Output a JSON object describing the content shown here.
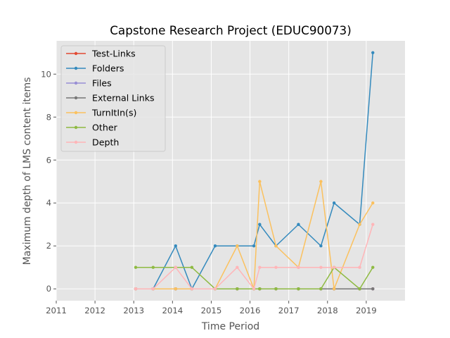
{
  "chart_data": {
    "type": "line",
    "title": "Capstone Research Project (EDUC90073)",
    "xlabel": "Time Period",
    "ylabel": "Maximum depth of LMS content items",
    "xlim": [
      2011,
      2020
    ],
    "ylim": [
      -0.55,
      11.55
    ],
    "xticks": [
      2011,
      2012,
      2013,
      2014,
      2015,
      2016,
      2017,
      2018,
      2019
    ],
    "yticks": [
      0,
      2,
      4,
      6,
      8,
      10
    ],
    "grid": true,
    "legend_position": "upper-left",
    "series": [
      {
        "name": "Test-Links",
        "color": "#E24A33",
        "points": [
          [
            2013.05,
            0
          ],
          [
            2013.5,
            0
          ],
          [
            2014.08,
            0
          ],
          [
            2014.5,
            0
          ],
          [
            2015.1,
            0
          ],
          [
            2015.67,
            0
          ],
          [
            2016.1,
            0
          ],
          [
            2016.25,
            0
          ],
          [
            2016.67,
            0
          ],
          [
            2017.25,
            0
          ],
          [
            2017.83,
            0
          ],
          [
            2018.17,
            0
          ],
          [
            2018.83,
            0
          ],
          [
            2019.17,
            0
          ]
        ]
      },
      {
        "name": "Folders",
        "color": "#348ABD",
        "points": [
          [
            2013.05,
            0
          ],
          [
            2013.5,
            0
          ],
          [
            2014.08,
            2
          ],
          [
            2014.5,
            0
          ],
          [
            2015.1,
            2
          ],
          [
            2015.67,
            2
          ],
          [
            2016.1,
            2
          ],
          [
            2016.25,
            3
          ],
          [
            2016.67,
            2
          ],
          [
            2017.25,
            3
          ],
          [
            2017.83,
            2
          ],
          [
            2018.17,
            4
          ],
          [
            2018.83,
            3
          ],
          [
            2019.17,
            11
          ]
        ]
      },
      {
        "name": "Files",
        "color": "#988ED5",
        "points": [
          [
            2013.05,
            0
          ],
          [
            2013.5,
            0
          ],
          [
            2014.08,
            0
          ],
          [
            2014.5,
            0
          ],
          [
            2015.1,
            0
          ],
          [
            2015.67,
            0
          ],
          [
            2016.1,
            0
          ],
          [
            2016.25,
            0
          ],
          [
            2016.67,
            0
          ],
          [
            2017.25,
            0
          ],
          [
            2017.83,
            0
          ],
          [
            2018.17,
            0
          ],
          [
            2018.83,
            0
          ],
          [
            2019.17,
            0
          ]
        ]
      },
      {
        "name": "External Links",
        "color": "#777777",
        "points": [
          [
            2013.05,
            0
          ],
          [
            2013.5,
            0
          ],
          [
            2014.08,
            0
          ],
          [
            2014.5,
            0
          ],
          [
            2015.1,
            0
          ],
          [
            2015.67,
            0
          ],
          [
            2016.1,
            0
          ],
          [
            2016.25,
            0
          ],
          [
            2016.67,
            0
          ],
          [
            2017.25,
            0
          ],
          [
            2017.83,
            0
          ],
          [
            2018.17,
            0
          ],
          [
            2018.83,
            0
          ],
          [
            2019.17,
            0
          ]
        ]
      },
      {
        "name": "TurnItIn(s)",
        "color": "#FBC15E",
        "points": [
          [
            2013.05,
            0
          ],
          [
            2013.5,
            0
          ],
          [
            2014.08,
            0
          ],
          [
            2014.5,
            0
          ],
          [
            2015.1,
            0
          ],
          [
            2015.67,
            2
          ],
          [
            2016.1,
            0
          ],
          [
            2016.25,
            5
          ],
          [
            2016.67,
            2
          ],
          [
            2017.25,
            1
          ],
          [
            2017.83,
            5
          ],
          [
            2018.17,
            0
          ],
          [
            2018.83,
            3
          ],
          [
            2019.17,
            4
          ]
        ]
      },
      {
        "name": "Other",
        "color": "#8EBA42",
        "points": [
          [
            2013.05,
            1
          ],
          [
            2013.5,
            1
          ],
          [
            2014.08,
            1
          ],
          [
            2014.5,
            1
          ],
          [
            2015.1,
            0
          ],
          [
            2015.67,
            0
          ],
          [
            2016.1,
            0
          ],
          [
            2016.25,
            0
          ],
          [
            2016.67,
            0
          ],
          [
            2017.25,
            0
          ],
          [
            2017.83,
            0
          ],
          [
            2018.17,
            1
          ],
          [
            2018.83,
            0
          ],
          [
            2019.17,
            1
          ]
        ]
      },
      {
        "name": "Depth",
        "color": "#FFB5B8",
        "points": [
          [
            2013.05,
            0
          ],
          [
            2013.5,
            0
          ],
          [
            2014.08,
            1
          ],
          [
            2014.5,
            0
          ],
          [
            2015.1,
            0
          ],
          [
            2015.67,
            1
          ],
          [
            2016.1,
            0
          ],
          [
            2016.25,
            1
          ],
          [
            2016.67,
            1
          ],
          [
            2017.25,
            1
          ],
          [
            2017.83,
            1
          ],
          [
            2018.17,
            1
          ],
          [
            2018.83,
            1
          ],
          [
            2019.17,
            3
          ]
        ]
      }
    ]
  }
}
